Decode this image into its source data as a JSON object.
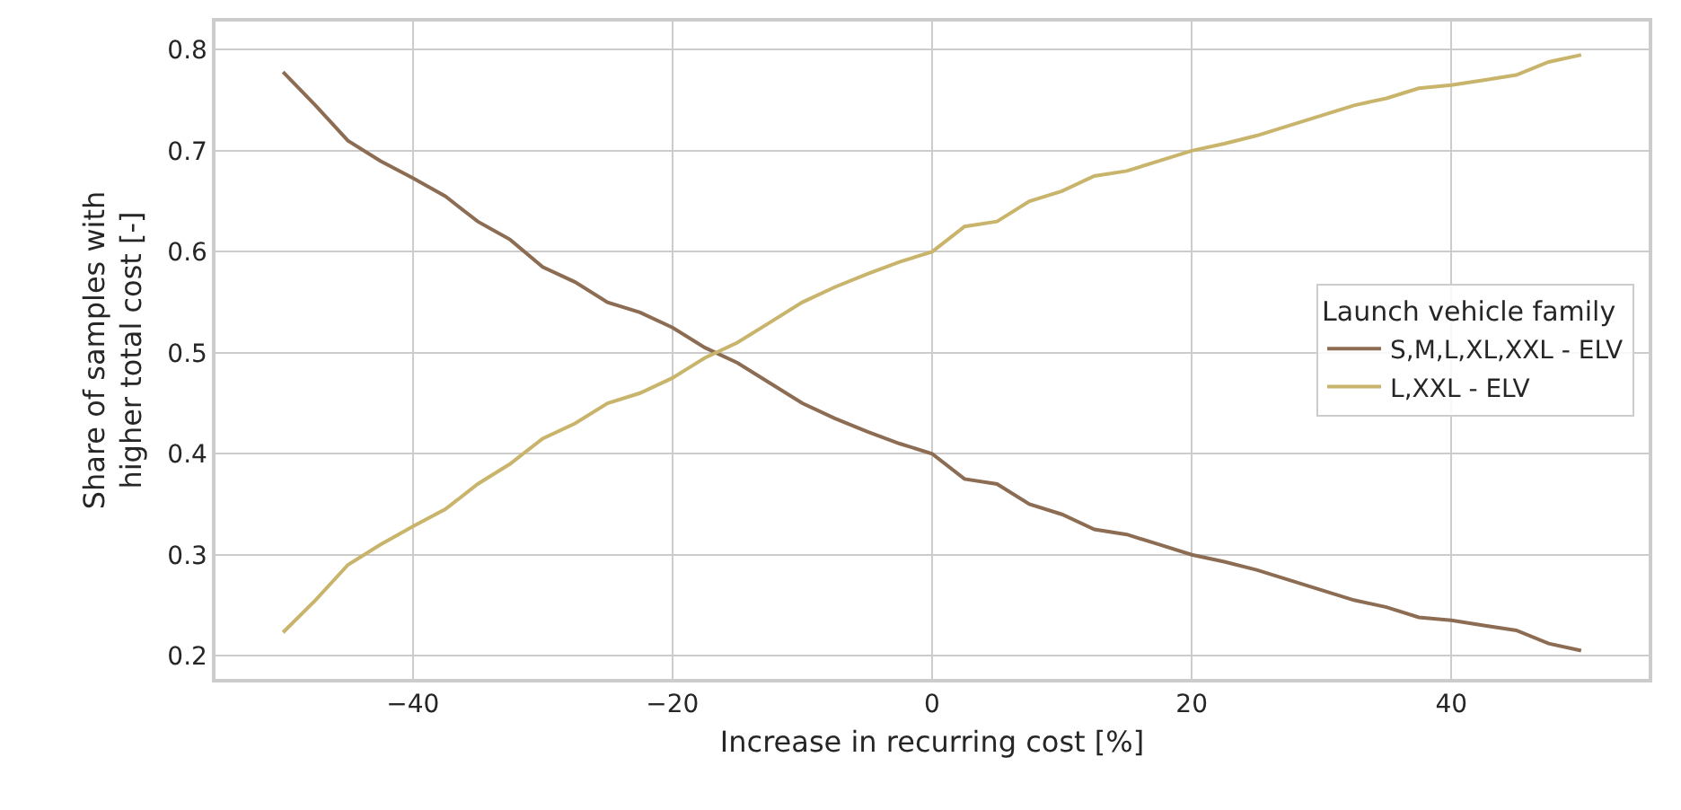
{
  "chart_data": {
    "type": "line",
    "xlabel": "Increase in recurring cost [%]",
    "ylabel": "Share of samples with\nhigher total cost [-]",
    "legend_title": "Launch vehicle family",
    "legend": "right",
    "grid": true,
    "line_style": "solid",
    "marker": "none",
    "x": [
      -50,
      -47.5,
      -45,
      -42.5,
      -40,
      -37.5,
      -35,
      -32.5,
      -30,
      -27.5,
      -25,
      -22.5,
      -20,
      -17.5,
      -15,
      -12.5,
      -10,
      -7.5,
      -5,
      -2.5,
      0,
      2.5,
      5,
      7.5,
      10,
      12.5,
      15,
      17.5,
      20,
      22.5,
      25,
      27.5,
      30,
      32.5,
      35,
      37.5,
      40,
      42.5,
      45,
      47.5,
      50
    ],
    "series": [
      {
        "name": "S,M,L,XL,XXL - ELV",
        "color": "#8c6d53",
        "values": [
          0.778,
          0.745,
          0.71,
          0.69,
          0.673,
          0.655,
          0.63,
          0.612,
          0.585,
          0.57,
          0.55,
          0.54,
          0.525,
          0.505,
          0.49,
          0.47,
          0.45,
          0.435,
          0.422,
          0.41,
          0.4,
          0.375,
          0.37,
          0.35,
          0.34,
          0.325,
          0.32,
          0.31,
          0.3,
          0.293,
          0.285,
          0.275,
          0.265,
          0.255,
          0.248,
          0.238,
          0.235,
          0.23,
          0.225,
          0.212,
          0.205
        ]
      },
      {
        "name": "L,XXL - ELV",
        "color": "#c9b46c",
        "values": [
          0.223,
          0.255,
          0.29,
          0.31,
          0.328,
          0.345,
          0.37,
          0.39,
          0.415,
          0.43,
          0.45,
          0.46,
          0.475,
          0.495,
          0.51,
          0.53,
          0.55,
          0.565,
          0.578,
          0.59,
          0.6,
          0.625,
          0.63,
          0.65,
          0.66,
          0.675,
          0.68,
          0.69,
          0.7,
          0.707,
          0.715,
          0.725,
          0.735,
          0.745,
          0.752,
          0.762,
          0.765,
          0.77,
          0.775,
          0.788,
          0.795
        ]
      }
    ],
    "xlim": [
      -55.2,
      55.2
    ],
    "xticks": [
      {
        "value": -40,
        "label": "−40"
      },
      {
        "value": -20,
        "label": "−20"
      },
      0,
      20,
      40
    ],
    "ylim": [
      0.177,
      0.828
    ],
    "yticks": [
      0.2,
      0.3,
      0.4,
      0.5,
      0.6,
      0.7,
      0.8
    ]
  }
}
